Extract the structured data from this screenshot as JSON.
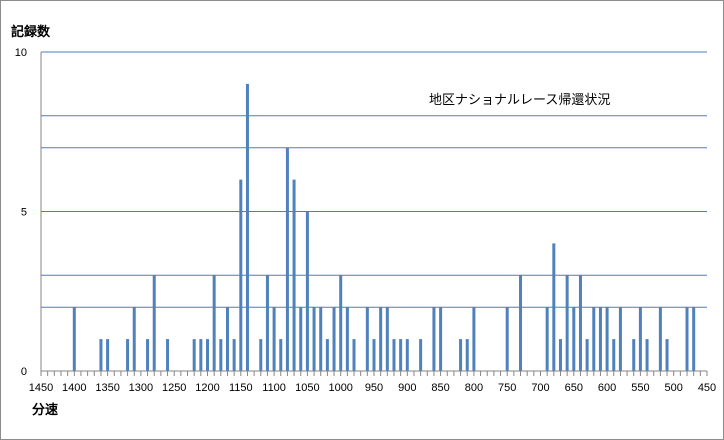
{
  "chart_data": {
    "type": "bar",
    "title": "",
    "annotation": "地区ナショナルレース帰還状況",
    "xlabel": "分速",
    "ylabel": "記録数",
    "x_reversed": true,
    "xlim": [
      1450,
      450
    ],
    "x_tick_step": 10,
    "x_label_step": 50,
    "ylim": [
      0,
      10
    ],
    "y_ticks": [
      0,
      5,
      10
    ],
    "gridlines_y": [
      2,
      3,
      5,
      7,
      8,
      10
    ],
    "bar_color": "#4f81bd",
    "x": [
      1400,
      1360,
      1350,
      1320,
      1310,
      1290,
      1280,
      1260,
      1220,
      1210,
      1200,
      1190,
      1180,
      1170,
      1160,
      1150,
      1140,
      1120,
      1110,
      1100,
      1090,
      1080,
      1070,
      1060,
      1050,
      1040,
      1030,
      1020,
      1010,
      1000,
      990,
      980,
      960,
      950,
      940,
      930,
      920,
      910,
      900,
      880,
      860,
      850,
      820,
      810,
      800,
      750,
      730,
      690,
      680,
      670,
      660,
      650,
      640,
      630,
      620,
      610,
      600,
      590,
      580,
      560,
      550,
      540,
      520,
      510,
      480,
      470
    ],
    "values": [
      2,
      1,
      1,
      1,
      2,
      1,
      3,
      1,
      1,
      1,
      1,
      3,
      1,
      2,
      1,
      6,
      9,
      1,
      3,
      2,
      1,
      7,
      6,
      2,
      5,
      2,
      2,
      1,
      2,
      3,
      2,
      1,
      2,
      1,
      2,
      2,
      1,
      1,
      1,
      1,
      2,
      2,
      1,
      1,
      2,
      2,
      3,
      2,
      4,
      1,
      3,
      2,
      3,
      1,
      2,
      2,
      2,
      1,
      2,
      1,
      2,
      1,
      2,
      1,
      2,
      2
    ]
  }
}
